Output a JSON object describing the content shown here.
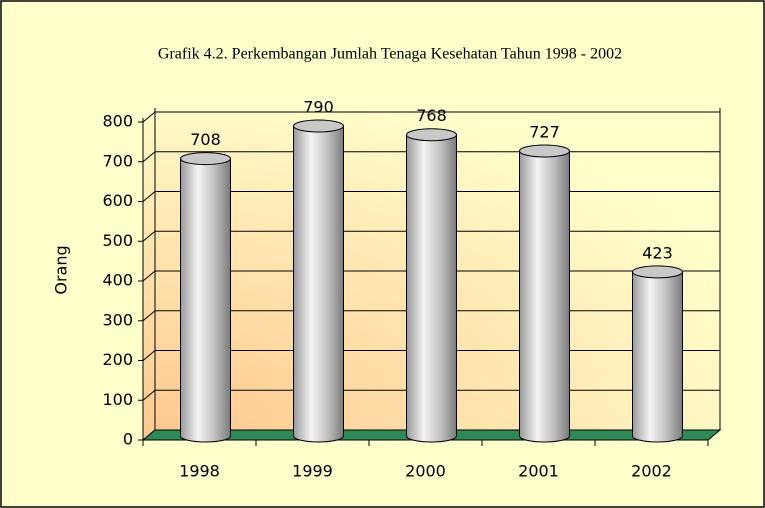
{
  "chart_data": {
    "type": "bar",
    "title": "Grafik 4.2. Perkembangan Jumlah Tenaga Kesehatan  Tahun 1998 - 2002",
    "y_label": "Orang",
    "categories": [
      "1998",
      "1999",
      "2000",
      "2001",
      "2002"
    ],
    "values": [
      708,
      790,
      768,
      727,
      423
    ],
    "color": "#c8c8c8",
    "ylim": [
      0,
      800
    ],
    "yticks": [
      0,
      100,
      200,
      300,
      400,
      500,
      600,
      700,
      800
    ],
    "grid": true
  }
}
